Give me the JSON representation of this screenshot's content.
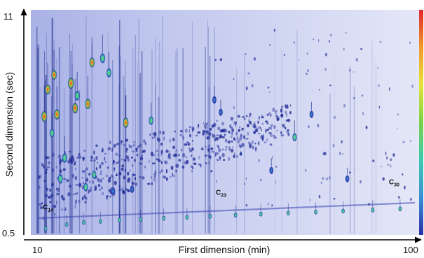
{
  "chart_data": {
    "type": "heatmap",
    "title": "",
    "xlabel": "First dimension (min)",
    "ylabel": "Second dimension (sec)",
    "xlim": [
      10,
      100
    ],
    "ylim": [
      0.5,
      11
    ],
    "x_ticks": [
      "10",
      "100"
    ],
    "y_ticks": [
      "11",
      "0.5"
    ],
    "colorscale": [
      "#2b2fa6",
      "#3c8fd6",
      "#3fc9b0",
      "#7ad14a",
      "#e7e23a",
      "#f29a2e",
      "#e0262b"
    ],
    "grid": false,
    "legend": "none",
    "annotations": [
      {
        "label": "C",
        "subscript": "14",
        "x": 12.5,
        "y": 1.4
      },
      {
        "label": "C",
        "subscript": "23",
        "x": 53.5,
        "y": 2.1
      },
      {
        "label": "C",
        "subscript": "30",
        "x": 94.5,
        "y": 2.6
      }
    ],
    "alkane_series": [
      {
        "x": 12.5,
        "y": 0.6
      },
      {
        "x": 17.5,
        "y": 0.8
      },
      {
        "x": 21.5,
        "y": 0.9
      },
      {
        "x": 25.5,
        "y": 0.95
      },
      {
        "x": 30.0,
        "y": 1.0
      },
      {
        "x": 35.0,
        "y": 1.05
      },
      {
        "x": 40.5,
        "y": 1.1
      },
      {
        "x": 46.0,
        "y": 1.15
      },
      {
        "x": 51.5,
        "y": 1.2
      },
      {
        "x": 57.5,
        "y": 1.25
      },
      {
        "x": 63.5,
        "y": 1.3
      },
      {
        "x": 70.0,
        "y": 1.35
      },
      {
        "x": 76.5,
        "y": 1.4
      },
      {
        "x": 83.0,
        "y": 1.45
      },
      {
        "x": 90.0,
        "y": 1.5
      },
      {
        "x": 96.5,
        "y": 1.55
      }
    ],
    "peaks": [
      {
        "x": 12.2,
        "y": 6.0,
        "i": 0.95
      },
      {
        "x": 13.0,
        "y": 7.3,
        "i": 0.8
      },
      {
        "x": 14.5,
        "y": 8.0,
        "i": 0.75
      },
      {
        "x": 15.2,
        "y": 6.1,
        "i": 0.85
      },
      {
        "x": 18.5,
        "y": 7.6,
        "i": 1.0
      },
      {
        "x": 19.5,
        "y": 6.4,
        "i": 0.9
      },
      {
        "x": 20.0,
        "y": 7.0,
        "i": 0.7
      },
      {
        "x": 22.5,
        "y": 6.6,
        "i": 0.85
      },
      {
        "x": 23.5,
        "y": 8.6,
        "i": 0.75
      },
      {
        "x": 26.0,
        "y": 8.8,
        "i": 0.7
      },
      {
        "x": 27.5,
        "y": 8.1,
        "i": 0.6
      },
      {
        "x": 31.5,
        "y": 5.7,
        "i": 0.8
      },
      {
        "x": 37.5,
        "y": 5.8,
        "i": 0.5
      },
      {
        "x": 16.0,
        "y": 3.0,
        "i": 0.6
      },
      {
        "x": 22.0,
        "y": 2.6,
        "i": 0.5
      },
      {
        "x": 14.0,
        "y": 5.2,
        "i": 0.55
      },
      {
        "x": 17.0,
        "y": 4.0,
        "i": 0.65
      },
      {
        "x": 24.0,
        "y": 3.2,
        "i": 0.45
      },
      {
        "x": 28.5,
        "y": 2.4,
        "i": 0.4
      },
      {
        "x": 33.0,
        "y": 2.5,
        "i": 0.35
      },
      {
        "x": 52.5,
        "y": 6.8,
        "i": 0.35
      },
      {
        "x": 71.5,
        "y": 5.0,
        "i": 0.45
      },
      {
        "x": 54.0,
        "y": 6.2,
        "i": 0.3
      },
      {
        "x": 66.0,
        "y": 3.4,
        "i": 0.3
      },
      {
        "x": 75.5,
        "y": 6.1,
        "i": 0.3
      },
      {
        "x": 84.0,
        "y": 3.0,
        "i": 0.25
      }
    ]
  }
}
